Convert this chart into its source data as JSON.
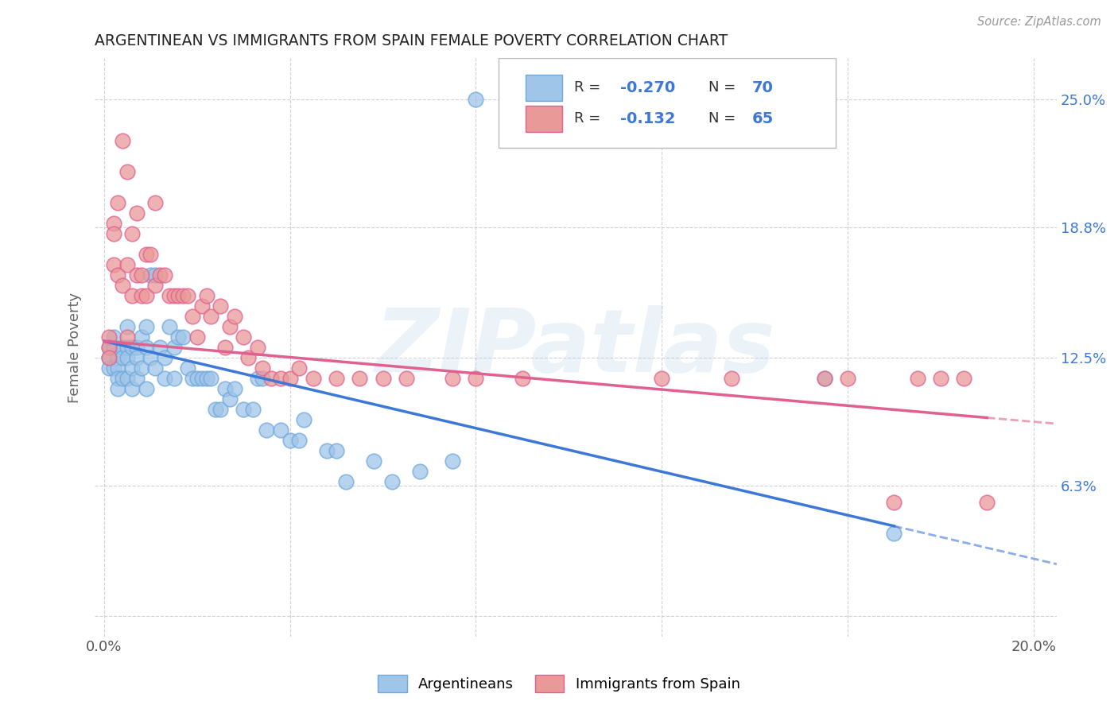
{
  "title": "ARGENTINEAN VS IMMIGRANTS FROM SPAIN FEMALE POVERTY CORRELATION CHART",
  "source": "Source: ZipAtlas.com",
  "ylabel_text": "Female Poverty",
  "xlim": [
    -0.002,
    0.205
  ],
  "ylim": [
    -0.01,
    0.27
  ],
  "color_blue": "#9fc5e8",
  "color_pink": "#ea9999",
  "color_blue_edge": "#6fa8dc",
  "color_pink_edge": "#e06090",
  "color_blue_line": "#3c78d8",
  "color_pink_line": "#e06090",
  "color_blue_text": "#3c78d8",
  "watermark": "ZIPatlas",
  "background_color": "#ffffff",
  "grid_color": "#cccccc",
  "argentineans_x": [
    0.001,
    0.001,
    0.001,
    0.002,
    0.002,
    0.002,
    0.003,
    0.003,
    0.003,
    0.003,
    0.004,
    0.004,
    0.004,
    0.005,
    0.005,
    0.005,
    0.005,
    0.006,
    0.006,
    0.006,
    0.007,
    0.007,
    0.007,
    0.008,
    0.008,
    0.009,
    0.009,
    0.009,
    0.01,
    0.01,
    0.011,
    0.011,
    0.012,
    0.013,
    0.013,
    0.014,
    0.015,
    0.015,
    0.016,
    0.017,
    0.018,
    0.019,
    0.02,
    0.021,
    0.022,
    0.023,
    0.024,
    0.025,
    0.026,
    0.027,
    0.028,
    0.03,
    0.032,
    0.033,
    0.034,
    0.035,
    0.038,
    0.04,
    0.042,
    0.043,
    0.048,
    0.05,
    0.052,
    0.058,
    0.062,
    0.068,
    0.075,
    0.08,
    0.155,
    0.17
  ],
  "argentineans_y": [
    0.13,
    0.125,
    0.12,
    0.135,
    0.13,
    0.12,
    0.125,
    0.12,
    0.115,
    0.11,
    0.13,
    0.125,
    0.115,
    0.14,
    0.13,
    0.125,
    0.115,
    0.13,
    0.12,
    0.11,
    0.13,
    0.125,
    0.115,
    0.135,
    0.12,
    0.14,
    0.13,
    0.11,
    0.165,
    0.125,
    0.165,
    0.12,
    0.13,
    0.125,
    0.115,
    0.14,
    0.13,
    0.115,
    0.135,
    0.135,
    0.12,
    0.115,
    0.115,
    0.115,
    0.115,
    0.115,
    0.1,
    0.1,
    0.11,
    0.105,
    0.11,
    0.1,
    0.1,
    0.115,
    0.115,
    0.09,
    0.09,
    0.085,
    0.085,
    0.095,
    0.08,
    0.08,
    0.065,
    0.075,
    0.065,
    0.07,
    0.075,
    0.25,
    0.115,
    0.04
  ],
  "spain_x": [
    0.001,
    0.001,
    0.001,
    0.002,
    0.002,
    0.002,
    0.003,
    0.003,
    0.004,
    0.004,
    0.005,
    0.005,
    0.005,
    0.006,
    0.006,
    0.007,
    0.007,
    0.008,
    0.008,
    0.009,
    0.009,
    0.01,
    0.011,
    0.011,
    0.012,
    0.013,
    0.014,
    0.015,
    0.016,
    0.017,
    0.018,
    0.019,
    0.02,
    0.021,
    0.022,
    0.023,
    0.025,
    0.026,
    0.027,
    0.028,
    0.03,
    0.031,
    0.033,
    0.034,
    0.036,
    0.038,
    0.04,
    0.042,
    0.045,
    0.05,
    0.055,
    0.06,
    0.065,
    0.075,
    0.08,
    0.09,
    0.12,
    0.135,
    0.155,
    0.16,
    0.17,
    0.175,
    0.18,
    0.185,
    0.19
  ],
  "spain_y": [
    0.135,
    0.13,
    0.125,
    0.19,
    0.185,
    0.17,
    0.2,
    0.165,
    0.23,
    0.16,
    0.215,
    0.17,
    0.135,
    0.185,
    0.155,
    0.195,
    0.165,
    0.165,
    0.155,
    0.175,
    0.155,
    0.175,
    0.2,
    0.16,
    0.165,
    0.165,
    0.155,
    0.155,
    0.155,
    0.155,
    0.155,
    0.145,
    0.135,
    0.15,
    0.155,
    0.145,
    0.15,
    0.13,
    0.14,
    0.145,
    0.135,
    0.125,
    0.13,
    0.12,
    0.115,
    0.115,
    0.115,
    0.12,
    0.115,
    0.115,
    0.115,
    0.115,
    0.115,
    0.115,
    0.115,
    0.115,
    0.115,
    0.115,
    0.115,
    0.115,
    0.055,
    0.115,
    0.115,
    0.115,
    0.055
  ],
  "trend_blue_x0": 0.0,
  "trend_blue_x1": 0.205,
  "trend_blue_y0": 0.133,
  "trend_blue_y1": 0.025,
  "trend_blue_solid_end": 0.17,
  "trend_pink_x0": 0.0,
  "trend_pink_x1": 0.205,
  "trend_pink_y0": 0.133,
  "trend_pink_y1": 0.093,
  "trend_pink_solid_end": 0.19
}
